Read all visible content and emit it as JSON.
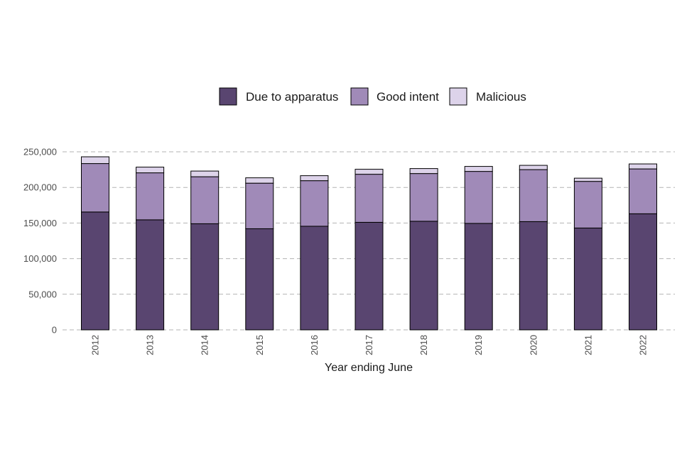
{
  "chart_data": {
    "type": "bar",
    "stacked": true,
    "title": "",
    "xlabel": "Year ending June",
    "ylabel": "",
    "ylim": [
      0,
      250000
    ],
    "yticks": [
      0,
      50000,
      100000,
      150000,
      200000,
      250000
    ],
    "ytick_labels": [
      "0",
      "50,000",
      "100,000",
      "150,000",
      "200,000",
      "250,000"
    ],
    "grid": "horizontal-dashed",
    "legend_position": "top",
    "categories": [
      "2012",
      "2013",
      "2014",
      "2015",
      "2016",
      "2017",
      "2018",
      "2019",
      "2020",
      "2021",
      "2022"
    ],
    "series": [
      {
        "name": "Due to apparatus",
        "color": "#594570",
        "values": [
          165500,
          154500,
          149000,
          142000,
          145500,
          151000,
          152500,
          149500,
          152000,
          143000,
          163000
        ]
      },
      {
        "name": "Good intent",
        "color": "#a08ab8",
        "values": [
          68000,
          66000,
          66000,
          64000,
          64000,
          67500,
          67000,
          73000,
          73000,
          65500,
          63000
        ]
      },
      {
        "name": "Malicious",
        "color": "#ddd3ea",
        "values": [
          9500,
          8000,
          8000,
          7500,
          7000,
          7000,
          7000,
          7000,
          6000,
          4500,
          7000
        ]
      }
    ]
  }
}
